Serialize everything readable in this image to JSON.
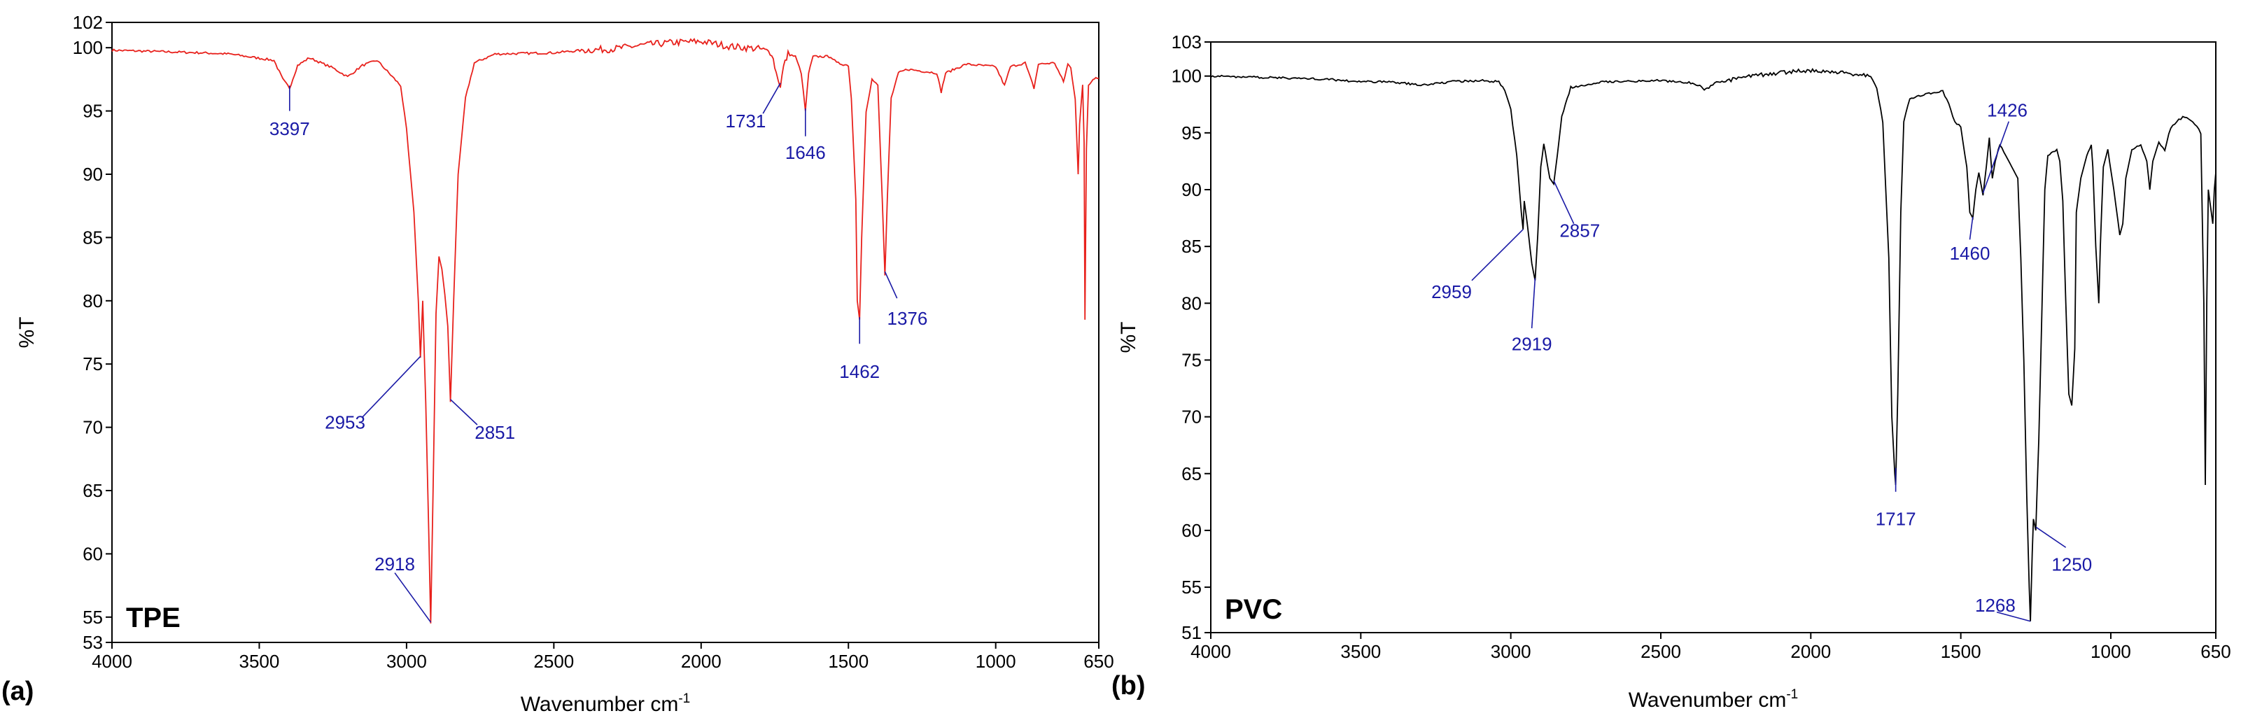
{
  "figure": {
    "panel_a_letter": "(a)",
    "panel_b_letter": "(b)"
  },
  "chart_data": [
    {
      "type": "line",
      "panel": "(a)",
      "sample": "TPE",
      "line_color": "#e8211c",
      "label_color": "#1a1aa6",
      "xlabel": "Wavenumber cm",
      "xlabel_sup": "-1",
      "ylabel": "%T",
      "xlim": [
        4000,
        650
      ],
      "ylim": [
        53,
        102
      ],
      "x_ticks": [
        4000,
        3500,
        3000,
        2500,
        2000,
        1500,
        1000,
        650
      ],
      "y_ticks": [
        53,
        55,
        60,
        65,
        70,
        75,
        80,
        85,
        90,
        95,
        100,
        102
      ],
      "baseline": [
        [
          4000,
          99.8
        ],
        [
          3700,
          99.6
        ],
        [
          3600,
          99.5
        ],
        [
          3450,
          99.0
        ],
        [
          3420,
          97.5
        ],
        [
          3397,
          96.8
        ],
        [
          3370,
          98.6
        ],
        [
          3330,
          99.2
        ],
        [
          3250,
          98.4
        ],
        [
          3200,
          97.7
        ],
        [
          3150,
          98.6
        ],
        [
          3100,
          99.0
        ],
        [
          3060,
          98.0
        ],
        [
          3020,
          97.0
        ],
        [
          3000,
          93.5
        ],
        [
          2975,
          87.0
        ],
        [
          2960,
          80.0
        ],
        [
          2953,
          75.5
        ],
        [
          2945,
          80.0
        ],
        [
          2935,
          72.0
        ],
        [
          2925,
          62.0
        ],
        [
          2918,
          54.5
        ],
        [
          2910,
          65.0
        ],
        [
          2900,
          79.0
        ],
        [
          2890,
          83.5
        ],
        [
          2880,
          82.5
        ],
        [
          2870,
          80.5
        ],
        [
          2860,
          78.0
        ],
        [
          2851,
          72.0
        ],
        [
          2840,
          80.0
        ],
        [
          2825,
          90.0
        ],
        [
          2800,
          96.0
        ],
        [
          2770,
          98.8
        ],
        [
          2700,
          99.5
        ],
        [
          2500,
          99.6
        ],
        [
          2400,
          99.8
        ],
        [
          2300,
          99.9
        ],
        [
          2200,
          100.2
        ],
        [
          2100,
          100.4
        ],
        [
          2000,
          100.5
        ],
        [
          1950,
          100.3
        ],
        [
          1900,
          100.1
        ],
        [
          1800,
          99.9
        ],
        [
          1760,
          99.6
        ],
        [
          1745,
          98.0
        ],
        [
          1731,
          97.0
        ],
        [
          1720,
          98.5
        ],
        [
          1705,
          99.5
        ],
        [
          1680,
          99.3
        ],
        [
          1660,
          98.0
        ],
        [
          1646,
          95.0
        ],
        [
          1635,
          98.0
        ],
        [
          1620,
          99.3
        ],
        [
          1560,
          99.3
        ],
        [
          1540,
          98.8
        ],
        [
          1500,
          98.6
        ],
        [
          1490,
          96.0
        ],
        [
          1475,
          88.0
        ],
        [
          1470,
          80.0
        ],
        [
          1462,
          78.5
        ],
        [
          1455,
          85.0
        ],
        [
          1440,
          95.0
        ],
        [
          1420,
          97.5
        ],
        [
          1400,
          97.0
        ],
        [
          1385,
          88.0
        ],
        [
          1376,
          82.0
        ],
        [
          1368,
          88.0
        ],
        [
          1355,
          96.0
        ],
        [
          1330,
          98.0
        ],
        [
          1300,
          98.3
        ],
        [
          1200,
          98.0
        ],
        [
          1185,
          96.5
        ],
        [
          1170,
          98.0
        ],
        [
          1100,
          98.7
        ],
        [
          1000,
          98.5
        ],
        [
          970,
          97.0
        ],
        [
          950,
          98.5
        ],
        [
          900,
          98.8
        ],
        [
          870,
          96.8
        ],
        [
          855,
          98.7
        ],
        [
          800,
          98.8
        ],
        [
          770,
          97.3
        ],
        [
          755,
          98.7
        ],
        [
          745,
          98.4
        ],
        [
          730,
          96.0
        ],
        [
          720,
          90.0
        ],
        [
          715,
          94.0
        ],
        [
          705,
          97.0
        ],
        [
          700,
          92.5
        ],
        [
          697,
          78.5
        ],
        [
          692,
          92.0
        ],
        [
          685,
          97.0
        ],
        [
          670,
          97.5
        ],
        [
          660,
          97.7
        ],
        [
          650,
          97.6
        ]
      ],
      "peak_labels": [
        "3397",
        "1731",
        "1646",
        "2953",
        "2851",
        "1462",
        "1376",
        "2918"
      ]
    },
    {
      "type": "line",
      "panel": "(b)",
      "sample": "PVC",
      "line_color": "#000000",
      "label_color": "#1a1aa6",
      "xlabel": "Wavenumber cm",
      "xlabel_sup": "-1",
      "ylabel": "%T",
      "xlim": [
        4000,
        650
      ],
      "ylim": [
        51,
        103
      ],
      "x_ticks": [
        4000,
        3500,
        3000,
        2500,
        2000,
        1500,
        1000,
        650
      ],
      "y_ticks": [
        51,
        55,
        60,
        65,
        70,
        75,
        80,
        85,
        90,
        95,
        100,
        103
      ],
      "baseline": [
        [
          4000,
          100.0
        ],
        [
          3700,
          99.8
        ],
        [
          3600,
          99.7
        ],
        [
          3500,
          99.5
        ],
        [
          3400,
          99.5
        ],
        [
          3300,
          99.2
        ],
        [
          3200,
          99.5
        ],
        [
          3100,
          99.6
        ],
        [
          3040,
          99.5
        ],
        [
          3020,
          98.8
        ],
        [
          3000,
          97.0
        ],
        [
          2980,
          93.0
        ],
        [
          2965,
          88.0
        ],
        [
          2959,
          86.5
        ],
        [
          2955,
          89.0
        ],
        [
          2945,
          87.0
        ],
        [
          2930,
          83.5
        ],
        [
          2919,
          82.0
        ],
        [
          2910,
          86.0
        ],
        [
          2900,
          92.0
        ],
        [
          2890,
          94.0
        ],
        [
          2880,
          92.5
        ],
        [
          2870,
          91.0
        ],
        [
          2857,
          90.5
        ],
        [
          2845,
          93.0
        ],
        [
          2830,
          96.5
        ],
        [
          2800,
          99.0
        ],
        [
          2700,
          99.5
        ],
        [
          2500,
          99.6
        ],
        [
          2400,
          99.4
        ],
        [
          2370,
          99.2
        ],
        [
          2355,
          98.8
        ],
        [
          2340,
          99.0
        ],
        [
          2320,
          99.4
        ],
        [
          2200,
          100.0
        ],
        [
          2100,
          100.3
        ],
        [
          2000,
          100.5
        ],
        [
          1900,
          100.3
        ],
        [
          1800,
          100.0
        ],
        [
          1780,
          99.0
        ],
        [
          1760,
          96.0
        ],
        [
          1740,
          84.0
        ],
        [
          1730,
          70.0
        ],
        [
          1720,
          65.0
        ],
        [
          1717,
          64.0
        ],
        [
          1710,
          72.0
        ],
        [
          1700,
          88.0
        ],
        [
          1690,
          96.0
        ],
        [
          1670,
          98.0
        ],
        [
          1600,
          98.5
        ],
        [
          1560,
          98.7
        ],
        [
          1540,
          97.5
        ],
        [
          1520,
          96.0
        ],
        [
          1500,
          95.5
        ],
        [
          1480,
          92.0
        ],
        [
          1470,
          88.0
        ],
        [
          1460,
          87.5
        ],
        [
          1450,
          90.0
        ],
        [
          1440,
          91.5
        ],
        [
          1426,
          89.5
        ],
        [
          1415,
          92.0
        ],
        [
          1405,
          94.5
        ],
        [
          1395,
          91.0
        ],
        [
          1385,
          92.5
        ],
        [
          1370,
          94.0
        ],
        [
          1350,
          93.0
        ],
        [
          1330,
          92.0
        ],
        [
          1310,
          91.0
        ],
        [
          1300,
          84.0
        ],
        [
          1290,
          75.0
        ],
        [
          1280,
          63.0
        ],
        [
          1272,
          55.0
        ],
        [
          1268,
          52.0
        ],
        [
          1262,
          58.0
        ],
        [
          1258,
          61.0
        ],
        [
          1250,
          60.0
        ],
        [
          1240,
          68.0
        ],
        [
          1220,
          90.0
        ],
        [
          1210,
          93.0
        ],
        [
          1180,
          93.5
        ],
        [
          1170,
          92.5
        ],
        [
          1160,
          89.0
        ],
        [
          1150,
          80.0
        ],
        [
          1140,
          72.0
        ],
        [
          1130,
          71.0
        ],
        [
          1120,
          76.0
        ],
        [
          1115,
          88.0
        ],
        [
          1100,
          91.0
        ],
        [
          1080,
          93.0
        ],
        [
          1065,
          94.0
        ],
        [
          1060,
          92.0
        ],
        [
          1050,
          85.0
        ],
        [
          1040,
          80.0
        ],
        [
          1035,
          85.0
        ],
        [
          1025,
          92.0
        ],
        [
          1010,
          93.5
        ],
        [
          990,
          90.0
        ],
        [
          970,
          86.0
        ],
        [
          960,
          87.0
        ],
        [
          950,
          91.0
        ],
        [
          930,
          93.5
        ],
        [
          900,
          94.0
        ],
        [
          880,
          92.5
        ],
        [
          870,
          90.0
        ],
        [
          860,
          92.5
        ],
        [
          840,
          94.2
        ],
        [
          820,
          93.5
        ],
        [
          800,
          95.5
        ],
        [
          780,
          96.0
        ],
        [
          760,
          96.4
        ],
        [
          740,
          96.2
        ],
        [
          720,
          95.8
        ],
        [
          700,
          95.0
        ],
        [
          690,
          80.0
        ],
        [
          685,
          64.0
        ],
        [
          680,
          80.0
        ],
        [
          675,
          90.0
        ],
        [
          665,
          88.0
        ],
        [
          660,
          87.0
        ],
        [
          655,
          90.0
        ],
        [
          650,
          91.5
        ]
      ],
      "peak_labels": [
        "2959",
        "2919",
        "2857",
        "1426",
        "1460",
        "1717",
        "1268",
        "1250"
      ]
    }
  ]
}
